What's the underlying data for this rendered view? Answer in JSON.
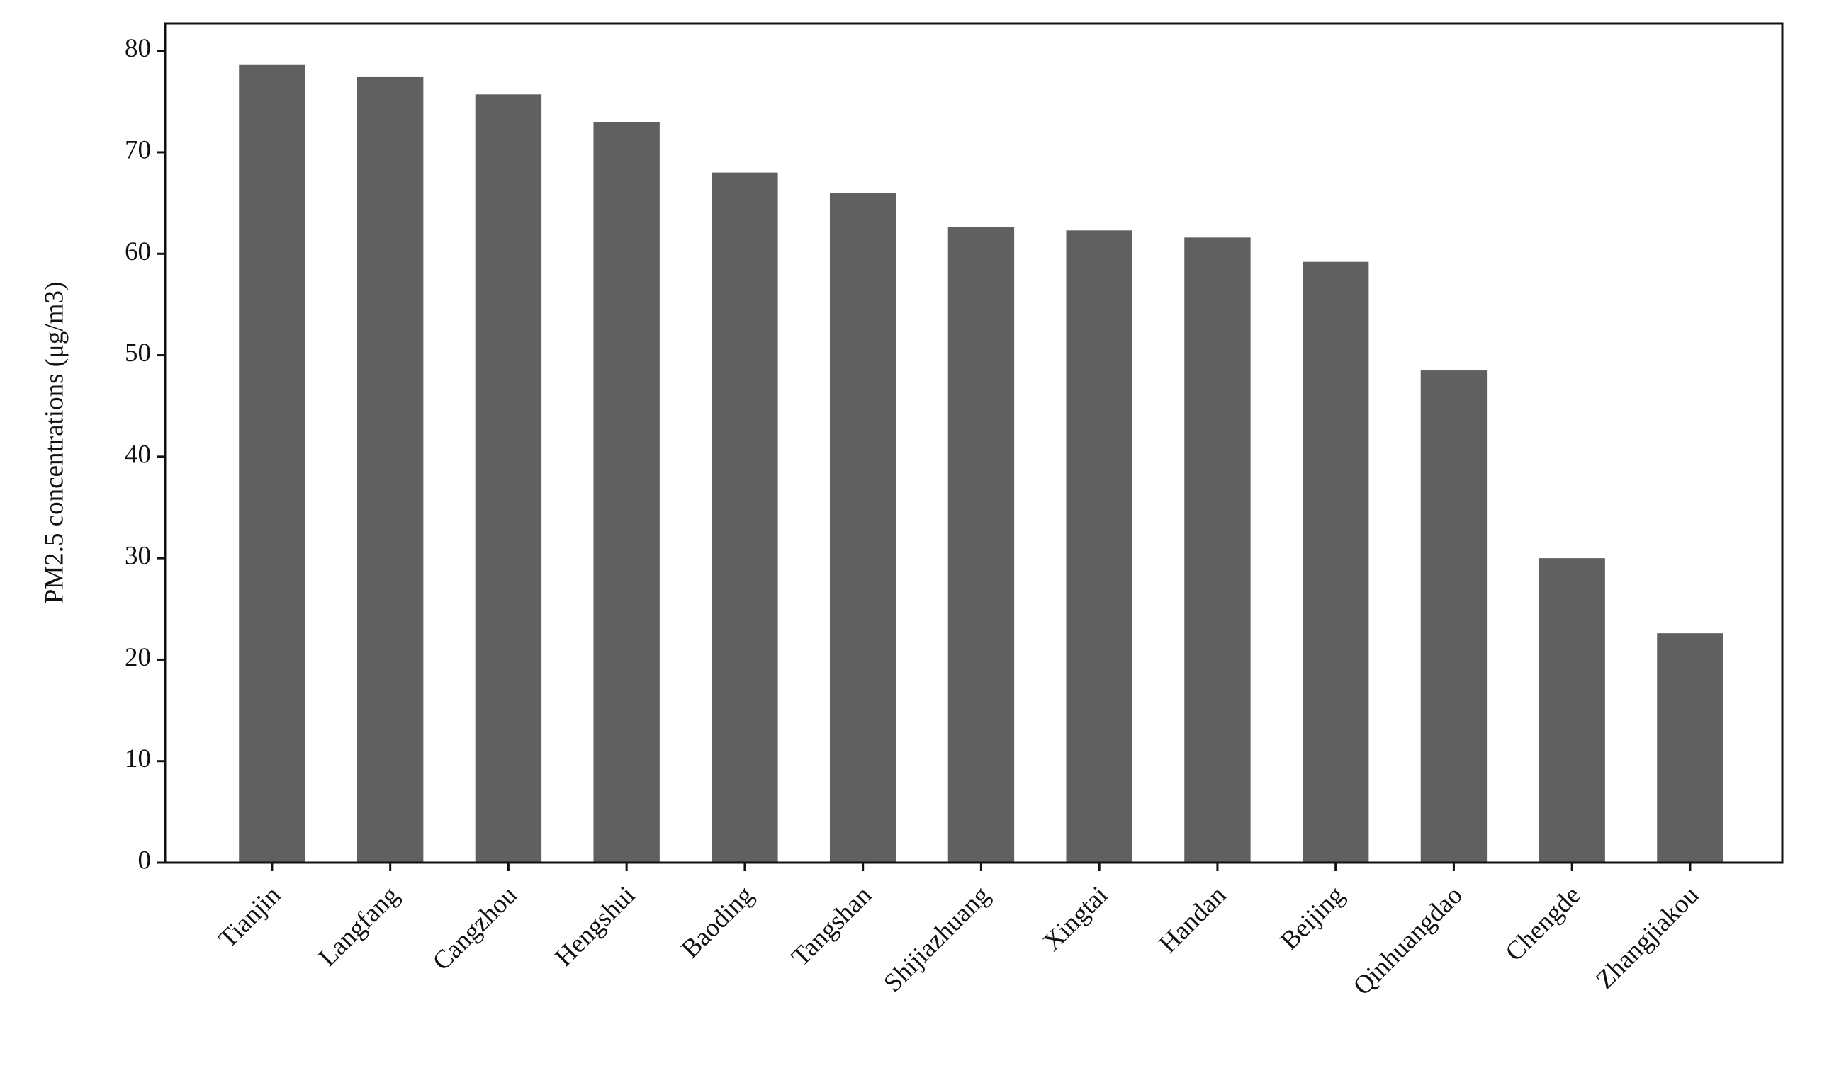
{
  "chart_data": {
    "type": "bar",
    "ylabel": "PM2.5 concentrations (μg/m3)",
    "categories": [
      "Tianjin",
      "Langfang",
      "Cangzhou",
      "Hengshui",
      "Baoding",
      "Tangshan",
      "Shijiazhuang",
      "Xingtai",
      "Handan",
      "Beijing",
      "Qinhuangdao",
      "Chengde",
      "Zhangjiakou"
    ],
    "values": [
      78.6,
      77.4,
      75.7,
      73.0,
      68.0,
      66.0,
      62.6,
      62.3,
      61.6,
      59.2,
      48.5,
      30.0,
      22.6
    ],
    "color": "#606060",
    "ylim": [
      0,
      82.7
    ],
    "yticks": [
      0,
      10,
      20,
      30,
      40,
      50,
      60,
      70,
      80
    ],
    "grid": false
  }
}
